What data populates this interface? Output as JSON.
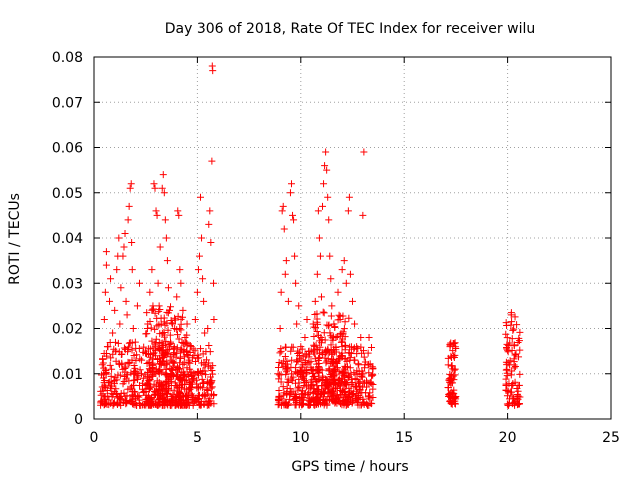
{
  "chart_data": {
    "type": "scatter",
    "title": "Day 306 of 2018, Rate Of TEC Index for receiver wilu",
    "xlabel": "GPS time / hours",
    "ylabel": "ROTI / TECUs",
    "xlim": [
      0,
      25
    ],
    "ylim": [
      0,
      0.08
    ],
    "x_ticks": [
      0,
      5,
      10,
      15,
      20,
      25
    ],
    "x_tick_labels": [
      "0",
      "5",
      "10",
      "15",
      "20",
      "25"
    ],
    "y_ticks": [
      0,
      0.01,
      0.02,
      0.03,
      0.04,
      0.05,
      0.06,
      0.07,
      0.08
    ],
    "y_tick_labels": [
      "0",
      "0.01",
      "0.02",
      "0.03",
      "0.04",
      "0.05",
      "0.06",
      "0.07",
      "0.08"
    ],
    "grid": true,
    "marker": "plus",
    "color": "#ff0000",
    "series": [
      {
        "points": [
          [
            0.4,
            0.012
          ],
          [
            0.5,
            0.022
          ],
          [
            0.55,
            0.028
          ],
          [
            0.6,
            0.037
          ],
          [
            0.6,
            0.034
          ],
          [
            0.65,
            0.016
          ],
          [
            0.7,
            0.008
          ],
          [
            0.75,
            0.026
          ],
          [
            0.8,
            0.031
          ],
          [
            0.85,
            0.011
          ],
          [
            0.9,
            0.019
          ],
          [
            1.0,
            0.024
          ],
          [
            1.05,
            0.015
          ],
          [
            1.1,
            0.033
          ],
          [
            1.15,
            0.036
          ],
          [
            1.2,
            0.04
          ],
          [
            1.25,
            0.021
          ],
          [
            1.3,
            0.029
          ],
          [
            1.35,
            0.012
          ],
          [
            1.4,
            0.036
          ],
          [
            1.45,
            0.038
          ],
          [
            1.5,
            0.041
          ],
          [
            1.55,
            0.026
          ],
          [
            1.6,
            0.023
          ],
          [
            1.65,
            0.044
          ],
          [
            1.7,
            0.047
          ],
          [
            1.75,
            0.051
          ],
          [
            1.8,
            0.052
          ],
          [
            1.82,
            0.039
          ],
          [
            1.85,
            0.033
          ],
          [
            1.9,
            0.02
          ],
          [
            2.0,
            0.017
          ],
          [
            2.1,
            0.025
          ],
          [
            2.2,
            0.03
          ],
          [
            2.3,
            0.013
          ],
          [
            2.4,
            0.009
          ],
          [
            2.5,
            0.015
          ],
          [
            2.6,
            0.021
          ],
          [
            2.7,
            0.028
          ],
          [
            2.8,
            0.033
          ],
          [
            2.85,
            0.025
          ],
          [
            2.9,
            0.052
          ],
          [
            2.95,
            0.051
          ],
          [
            3.0,
            0.046
          ],
          [
            3.05,
            0.045
          ],
          [
            3.1,
            0.03
          ],
          [
            3.15,
            0.025
          ],
          [
            3.2,
            0.038
          ],
          [
            3.25,
            0.021
          ],
          [
            3.3,
            0.051
          ],
          [
            3.35,
            0.054
          ],
          [
            3.4,
            0.05
          ],
          [
            3.45,
            0.044
          ],
          [
            3.5,
            0.04
          ],
          [
            3.55,
            0.035
          ],
          [
            3.6,
            0.029
          ],
          [
            3.65,
            0.024
          ],
          [
            3.7,
            0.017
          ],
          [
            3.8,
            0.021
          ],
          [
            3.9,
            0.02
          ],
          [
            4.0,
            0.027
          ],
          [
            4.05,
            0.046
          ],
          [
            4.1,
            0.045
          ],
          [
            4.15,
            0.033
          ],
          [
            4.2,
            0.03
          ],
          [
            4.3,
            0.024
          ],
          [
            4.4,
            0.018
          ],
          [
            4.5,
            0.021
          ],
          [
            4.6,
            0.013
          ],
          [
            4.7,
            0.016
          ],
          [
            4.8,
            0.01
          ],
          [
            4.9,
            0.022
          ],
          [
            5.0,
            0.028
          ],
          [
            5.05,
            0.033
          ],
          [
            5.1,
            0.036
          ],
          [
            5.15,
            0.049
          ],
          [
            5.2,
            0.04
          ],
          [
            5.25,
            0.031
          ],
          [
            5.3,
            0.026
          ],
          [
            5.35,
            0.019
          ],
          [
            5.4,
            0.012
          ],
          [
            5.5,
            0.02
          ],
          [
            5.55,
            0.043
          ],
          [
            5.6,
            0.046
          ],
          [
            5.65,
            0.039
          ],
          [
            5.7,
            0.057
          ],
          [
            5.72,
            0.078
          ],
          [
            5.74,
            0.077
          ],
          [
            5.78,
            0.03
          ],
          [
            5.8,
            0.022
          ],
          [
            8.9,
            0.01
          ],
          [
            9.0,
            0.02
          ],
          [
            9.05,
            0.028
          ],
          [
            9.1,
            0.046
          ],
          [
            9.15,
            0.047
          ],
          [
            9.2,
            0.042
          ],
          [
            9.25,
            0.032
          ],
          [
            9.3,
            0.035
          ],
          [
            9.4,
            0.026
          ],
          [
            9.5,
            0.05
          ],
          [
            9.55,
            0.052
          ],
          [
            9.6,
            0.045
          ],
          [
            9.65,
            0.044
          ],
          [
            9.7,
            0.036
          ],
          [
            9.75,
            0.03
          ],
          [
            9.8,
            0.021
          ],
          [
            9.9,
            0.025
          ],
          [
            10.0,
            0.016
          ],
          [
            10.1,
            0.012
          ],
          [
            10.2,
            0.018
          ],
          [
            10.3,
            0.022
          ],
          [
            10.4,
            0.015
          ],
          [
            10.5,
            0.011
          ],
          [
            10.6,
            0.021
          ],
          [
            10.7,
            0.026
          ],
          [
            10.8,
            0.032
          ],
          [
            10.85,
            0.046
          ],
          [
            10.9,
            0.04
          ],
          [
            10.95,
            0.036
          ],
          [
            11.0,
            0.027
          ],
          [
            11.05,
            0.047
          ],
          [
            11.1,
            0.052
          ],
          [
            11.15,
            0.056
          ],
          [
            11.2,
            0.059
          ],
          [
            11.25,
            0.055
          ],
          [
            11.3,
            0.049
          ],
          [
            11.35,
            0.044
          ],
          [
            11.4,
            0.036
          ],
          [
            11.45,
            0.031
          ],
          [
            11.5,
            0.025
          ],
          [
            11.6,
            0.021
          ],
          [
            11.7,
            0.018
          ],
          [
            11.8,
            0.028
          ],
          [
            11.9,
            0.022
          ],
          [
            12.0,
            0.033
          ],
          [
            12.1,
            0.035
          ],
          [
            12.2,
            0.03
          ],
          [
            12.3,
            0.046
          ],
          [
            12.35,
            0.049
          ],
          [
            12.4,
            0.032
          ],
          [
            12.5,
            0.026
          ],
          [
            12.6,
            0.021
          ],
          [
            12.7,
            0.016
          ],
          [
            12.8,
            0.012
          ],
          [
            12.9,
            0.018
          ],
          [
            13.0,
            0.045
          ],
          [
            13.05,
            0.059
          ],
          [
            13.1,
            0.012
          ],
          [
            13.2,
            0.008
          ],
          [
            13.3,
            0.018
          ]
        ]
      }
    ],
    "clusters": [
      {
        "x": [
          0.3,
          5.8
        ],
        "y": [
          0.003,
          0.017
        ]
      },
      {
        "x": [
          2.5,
          4.6
        ],
        "y": [
          0.003,
          0.025
        ]
      },
      {
        "x": [
          8.9,
          13.5
        ],
        "y": [
          0.003,
          0.016
        ]
      },
      {
        "x": [
          10.6,
          12.4
        ],
        "y": [
          0.004,
          0.024
        ]
      },
      {
        "x": [
          17.1,
          17.5
        ],
        "y": [
          0.003,
          0.017
        ]
      },
      {
        "x": [
          19.9,
          20.6
        ],
        "y": [
          0.003,
          0.024
        ]
      }
    ]
  }
}
